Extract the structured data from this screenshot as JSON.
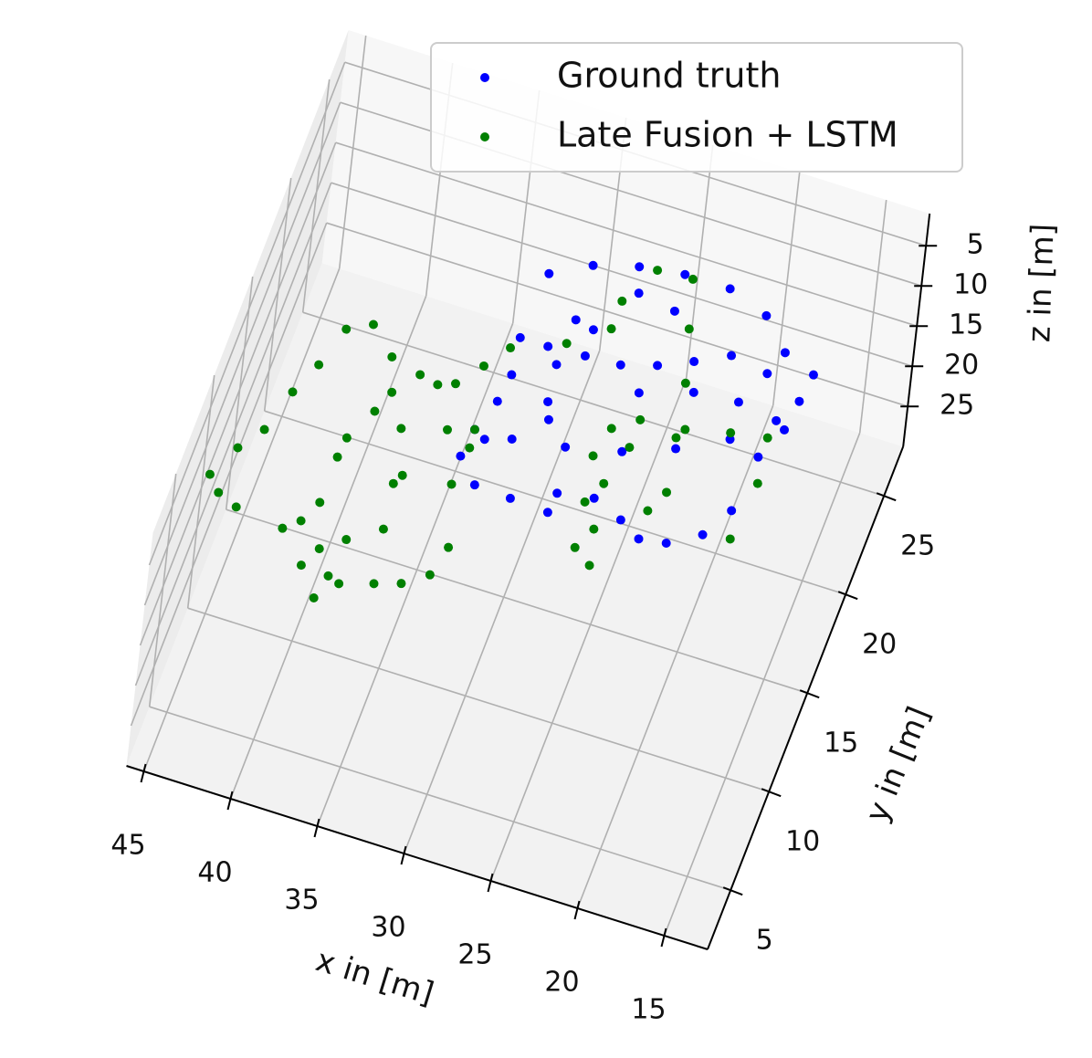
{
  "chart_data": {
    "type": "scatter3d",
    "xlabel": "x in [m]",
    "ylabel": "y in [m]",
    "zlabel": "z in [m]",
    "xlim": [
      12.5,
      46
    ],
    "ylim": [
      2,
      27.5
    ],
    "zlim": [
      1,
      30
    ],
    "xticks": [
      15,
      20,
      25,
      30,
      35,
      40,
      45
    ],
    "yticks": [
      5,
      10,
      15,
      20,
      25
    ],
    "zticks": [
      5,
      10,
      15,
      20,
      25
    ],
    "grid": true,
    "legend": "upper right",
    "series": [
      {
        "name": "Ground truth",
        "color": "#0000ff",
        "x": [
          33.0,
          30.9,
          28.5,
          26.0,
          23.4,
          21.0,
          19.3,
          17.4,
          17.6,
          18.4,
          20.4,
          23.0,
          25.7,
          28.7,
          31.6,
          33.7,
          33.9,
          32.6,
          30.5,
          28.2,
          26.2,
          24.4,
          23.1,
          21.6,
          19.9,
          18.9,
          18.6,
          17.8,
          19.8,
          22.0,
          23.8,
          25.6,
          27.5,
          29.5,
          31.6,
          33.2,
          32.9,
          33.1,
          33.0,
          30.5,
          29.6,
          30.7,
          30.8,
          30.1,
          26.0,
          23.2,
          20.7,
          25.8,
          28.0,
          28.3
        ],
        "y": [
          26.5,
          27.5,
          28.1,
          28.4,
          28.4,
          27.7,
          26.3,
          25.7,
          24.3,
          23.1,
          21.6,
          20.4,
          19.5,
          18.9,
          18.5,
          18.4,
          17.0,
          15.9,
          15.8,
          16.7,
          17.0,
          16.4,
          15.8,
          16.0,
          16.9,
          18.4,
          21.2,
          22.8,
          25.1,
          25.4,
          24.6,
          23.9,
          23.4,
          23.3,
          23.2,
          23.2,
          21.4,
          20.0,
          18.1,
          20.7,
          24.6,
          24.8,
          22.5,
          19.9,
          22.4,
          23.2,
          23.4,
          26.6,
          26.9,
          15.7
        ],
        "z": [
          20,
          20,
          20,
          20,
          20,
          20,
          20,
          20,
          20,
          20,
          20,
          20,
          20,
          20,
          20,
          20,
          20,
          20,
          20,
          20,
          20,
          20,
          20,
          20,
          20,
          20,
          20,
          20,
          20,
          20,
          20,
          20,
          20,
          20,
          20,
          20,
          20,
          20,
          20,
          20,
          20,
          20,
          20,
          20,
          20,
          20,
          20,
          20,
          20,
          20
        ]
      },
      {
        "name": "Late Fusion + LSTM",
        "color": "#008000",
        "x": [
          46.4,
          45.5,
          44.5,
          43.8,
          43.0,
          42.3,
          41.0,
          39.4,
          37.6,
          36.5,
          35.1,
          33.8,
          32.7,
          33.1,
          34.4,
          35.8,
          37.6,
          38.6,
          39.3,
          40.2,
          40.1,
          39.2,
          38.7,
          37.5,
          36.8,
          36.4,
          38.1,
          40.8,
          41.6,
          39.9,
          38.3,
          44.4,
          45.6,
          40.2,
          36.5,
          35.6,
          34.5,
          33.5,
          30.7,
          28.7,
          28.7,
          27.5,
          25.5,
          24.7,
          23.8,
          23.2,
          22.6,
          23.2,
          25.4,
          26.7,
          27.1,
          26.6,
          26.2,
          25.1,
          25.6,
          26.0,
          25.4,
          22.9,
          20.5,
          18.5,
          18.1,
          18.4,
          33.7,
          33.6
        ],
        "y": [
          12.6,
          14.2,
          15.4,
          17.5,
          19.1,
          21.1,
          21.7,
          20.5,
          20.1,
          19.9,
          18.0,
          15.6,
          12.7,
          11.2,
          10.4,
          10.0,
          9.5,
          8.5,
          10.8,
          12.9,
          16.2,
          17.8,
          18.9,
          17.4,
          14.8,
          12.6,
          11.6,
          11.8,
          11.2,
          9.8,
          9.7,
          11.5,
          11.9,
          15.2,
          15.3,
          20.2,
          21.4,
          22.6,
          23.6,
          24.9,
          26.3,
          28.2,
          28.3,
          26.0,
          23.5,
          20.9,
          18.3,
          17.2,
          19.8,
          20.4,
          18.9,
          16.7,
          14.5,
          13.9,
          15.6,
          17.8,
          21.2,
          21.4,
          21.9,
          22.2,
          20.0,
          17.1,
          18.4,
          17.5
        ],
        "z": [
          20,
          20,
          20,
          20,
          20,
          20,
          20,
          20,
          20,
          20,
          20,
          20,
          20,
          20,
          20,
          20,
          20,
          20,
          20,
          20,
          20,
          20,
          20,
          20,
          20,
          20,
          20,
          20,
          20,
          20,
          20,
          20,
          20,
          20,
          20,
          20,
          20,
          20,
          20,
          20,
          20,
          20,
          20,
          20,
          20,
          20,
          20,
          20,
          20,
          20,
          20,
          20,
          20,
          20,
          20,
          20,
          20,
          20,
          20,
          20,
          20,
          20,
          20,
          20
        ]
      }
    ]
  }
}
